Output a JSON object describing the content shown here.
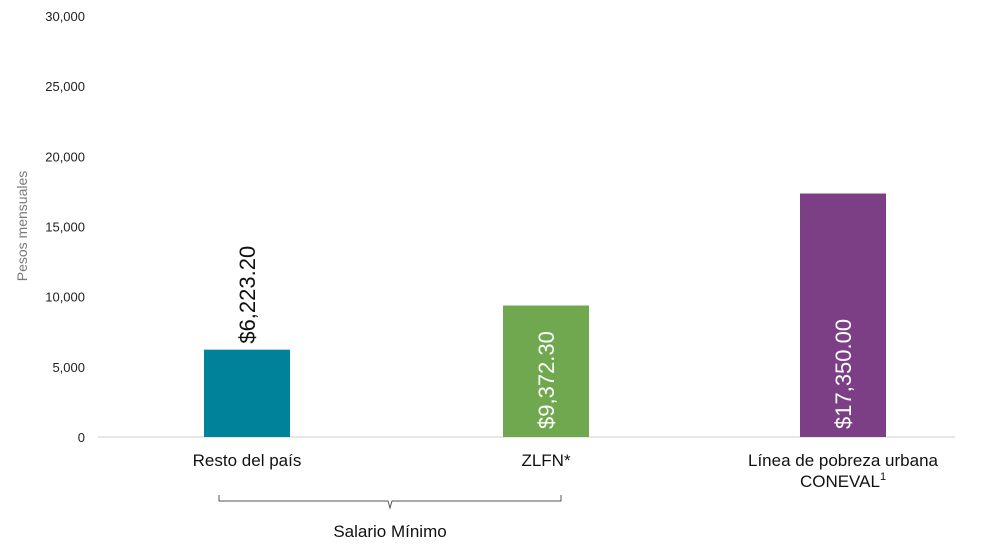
{
  "chart_data": {
    "type": "bar",
    "ylabel": "Pesos mensuales",
    "ylim": [
      0,
      30000
    ],
    "yticks": [
      "0",
      "5,000",
      "10,000",
      "15,000",
      "20,000",
      "25,000",
      "30,000"
    ],
    "grid": false,
    "legend": "none",
    "categories": [
      "Resto del país",
      "ZLFN*",
      "Línea de pobreza urbana CONEVAL"
    ],
    "category_lines": [
      [
        "Resto del país"
      ],
      [
        "ZLFN*"
      ],
      [
        "Línea de pobreza urbana",
        "CONEVAL"
      ]
    ],
    "category_superscripts": [
      "",
      "",
      "1"
    ],
    "values": [
      6223.2,
      9372.3,
      17350.0
    ],
    "value_labels": [
      "$6,223.20",
      "$9,372.30",
      "$17,350.00"
    ],
    "colors": [
      "#00839a",
      "#70a84f",
      "#7c3f86"
    ],
    "value_label_colors": [
      "#111111",
      "#ffffff",
      "#ffffff"
    ],
    "value_label_inside": [
      false,
      true,
      true
    ],
    "group_bracket": {
      "label": "Salario Mínimo",
      "categories": [
        0,
        1
      ]
    }
  }
}
